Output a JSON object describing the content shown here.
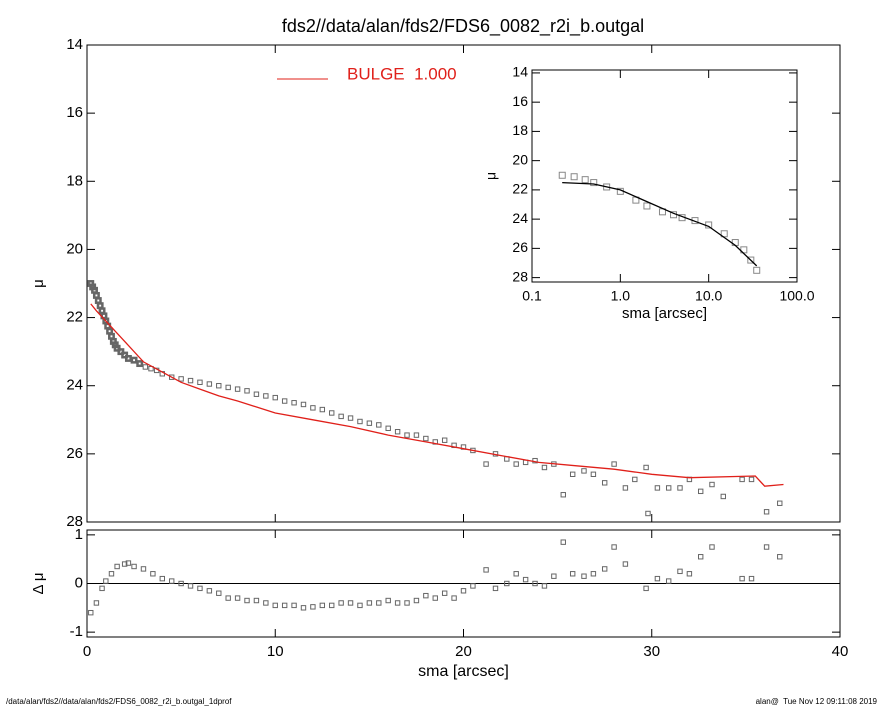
{
  "chart_data": [
    {
      "type": "scatter",
      "title": "fds2//data/alan/fds2/FDS6_0082_r2i_b.outgal",
      "ylabel": "μ",
      "xlim": [
        0,
        40
      ],
      "xticks": [
        0,
        10,
        20,
        30,
        40
      ],
      "show_xtick_labels": false,
      "ylim": [
        28,
        14
      ],
      "yticks": [
        14,
        16,
        18,
        20,
        22,
        24,
        26,
        28
      ],
      "series": [
        {
          "style": "markers",
          "color": "#666666",
          "x": [
            0.2,
            0.3,
            0.4,
            0.5,
            0.6,
            0.7,
            0.8,
            0.9,
            1.0,
            1.1,
            1.2,
            1.3,
            1.4,
            1.5,
            1.6,
            1.8,
            2.0,
            2.2,
            2.5,
            2.8,
            3.1,
            3.4,
            3.7,
            4.0,
            4.5,
            5.0,
            5.5,
            6.0,
            6.5,
            7.0,
            7.5,
            8.0,
            8.5,
            9.0,
            9.5,
            10.0,
            10.5,
            11.0,
            11.5,
            12.0,
            12.5,
            13.0,
            13.5,
            14.0,
            14.5,
            15.0,
            15.5,
            16.0,
            16.5,
            17.0,
            17.5,
            18.0,
            18.5,
            19.0,
            19.5,
            20.0,
            20.5,
            21.2,
            21.7,
            22.3,
            22.8,
            23.3,
            23.8,
            24.3,
            24.8,
            25.3,
            25.8,
            26.4,
            26.9,
            27.5,
            28.0,
            28.6,
            29.1,
            29.7,
            29.8,
            30.3,
            30.9,
            31.5,
            32.0,
            32.6,
            33.2,
            33.8,
            34.8,
            35.3,
            36.1,
            36.8
          ],
          "values": [
            21.0,
            21.1,
            21.2,
            21.35,
            21.5,
            21.65,
            21.8,
            21.95,
            22.1,
            22.25,
            22.4,
            22.55,
            22.7,
            22.8,
            22.9,
            23.0,
            23.1,
            23.2,
            23.25,
            23.35,
            23.45,
            23.5,
            23.55,
            23.65,
            23.75,
            23.8,
            23.85,
            23.9,
            23.95,
            24.0,
            24.05,
            24.1,
            24.15,
            24.25,
            24.3,
            24.35,
            24.45,
            24.5,
            24.55,
            24.65,
            24.7,
            24.8,
            24.9,
            24.95,
            25.05,
            25.1,
            25.15,
            25.25,
            25.35,
            25.45,
            25.45,
            25.55,
            25.65,
            25.6,
            25.75,
            25.8,
            25.9,
            26.3,
            26.0,
            26.15,
            26.3,
            26.25,
            26.2,
            26.4,
            26.3,
            27.2,
            26.6,
            26.5,
            26.6,
            26.85,
            26.3,
            27.0,
            26.75,
            26.4,
            27.75,
            27.0,
            27.0,
            27.0,
            26.75,
            27.1,
            26.9,
            27.25,
            26.75,
            26.75,
            27.7,
            27.45
          ]
        },
        {
          "style": "line",
          "name": "BULGE  1.000",
          "color": "#e0201a",
          "x": [
            0.2,
            0.5,
            1,
            1.5,
            2,
            3,
            4,
            5,
            6,
            7,
            8,
            10,
            12,
            14,
            16,
            18,
            20,
            22,
            24,
            26,
            28,
            30,
            32,
            35.5,
            36,
            37
          ],
          "values": [
            21.6,
            21.8,
            22.1,
            22.4,
            22.7,
            23.3,
            23.6,
            23.9,
            24.1,
            24.3,
            24.45,
            24.8,
            25.0,
            25.2,
            25.45,
            25.65,
            25.85,
            26.05,
            26.25,
            26.35,
            26.45,
            26.6,
            26.7,
            26.65,
            26.95,
            26.9
          ]
        }
      ]
    },
    {
      "type": "scatter",
      "ylabel": "Δ μ",
      "xlabel": "sma [arcsec]",
      "zero_line": true,
      "xlim": [
        0,
        40
      ],
      "xticks": [
        0,
        10,
        20,
        30,
        40
      ],
      "show_xtick_labels": true,
      "ylim": [
        -1.1,
        1.1
      ],
      "yticks": [
        -1,
        0,
        1
      ],
      "series": [
        {
          "style": "markers",
          "color": "#666666",
          "x": [
            0.2,
            0.5,
            0.8,
            1.0,
            1.3,
            1.6,
            2.0,
            2.2,
            2.5,
            3.0,
            3.5,
            4.0,
            4.5,
            5.0,
            5.5,
            6.0,
            6.5,
            7.0,
            7.5,
            8.0,
            8.5,
            9.0,
            9.5,
            10.0,
            10.5,
            11.0,
            11.5,
            12.0,
            12.5,
            13.0,
            13.5,
            14.0,
            14.5,
            15.0,
            15.5,
            16.0,
            16.5,
            17.0,
            17.5,
            18.0,
            18.5,
            19.0,
            19.5,
            20.0,
            20.5,
            21.2,
            21.7,
            22.3,
            22.8,
            23.3,
            23.8,
            24.3,
            24.8,
            25.3,
            25.8,
            26.4,
            26.9,
            27.5,
            28.0,
            28.6,
            29.7,
            30.3,
            30.9,
            31.5,
            32.0,
            32.6,
            33.2,
            34.8,
            35.3,
            36.1,
            36.8
          ],
          "values": [
            -0.6,
            -0.4,
            -0.1,
            0.05,
            0.2,
            0.35,
            0.4,
            0.42,
            0.35,
            0.3,
            0.2,
            0.1,
            0.05,
            0.0,
            -0.05,
            -0.1,
            -0.15,
            -0.2,
            -0.3,
            -0.3,
            -0.35,
            -0.35,
            -0.4,
            -0.45,
            -0.45,
            -0.45,
            -0.5,
            -0.48,
            -0.45,
            -0.45,
            -0.4,
            -0.4,
            -0.45,
            -0.4,
            -0.4,
            -0.35,
            -0.4,
            -0.4,
            -0.35,
            -0.25,
            -0.3,
            -0.2,
            -0.3,
            -0.15,
            -0.05,
            0.28,
            -0.1,
            0.0,
            0.2,
            0.08,
            0.0,
            -0.05,
            0.15,
            0.85,
            0.2,
            0.15,
            0.2,
            0.3,
            0.75,
            0.4,
            -0.1,
            0.1,
            0.05,
            0.25,
            0.2,
            0.55,
            0.75,
            0.1,
            0.1,
            0.75,
            0.55
          ]
        }
      ]
    },
    {
      "type": "scatter",
      "ylabel": "μ",
      "xlabel": "sma [arcsec]",
      "xscale": "log",
      "xlim": [
        0.1,
        100
      ],
      "xticks": [
        0.1,
        {
          "value": 1,
          "label": "1.0"
        },
        {
          "value": 10,
          "label": "10.0"
        },
        {
          "value": 100,
          "label": "100.0"
        }
      ],
      "show_xtick_labels": true,
      "ylim": [
        28.3,
        13.8
      ],
      "yticks": [
        14,
        16,
        18,
        20,
        22,
        24,
        26,
        28
      ],
      "series": [
        {
          "style": "markers",
          "color": "#888888",
          "x": [
            0.22,
            0.3,
            0.4,
            0.5,
            0.7,
            1,
            1.5,
            2,
            3,
            4,
            5,
            7,
            10,
            15,
            20,
            25,
            30,
            35
          ],
          "values": [
            21.0,
            21.1,
            21.3,
            21.5,
            21.8,
            22.1,
            22.7,
            23.1,
            23.5,
            23.7,
            23.9,
            24.1,
            24.4,
            25.0,
            25.6,
            26.1,
            26.8,
            27.5
          ]
        },
        {
          "style": "line",
          "color": "#000000",
          "x": [
            0.22,
            0.5,
            1,
            2,
            4,
            10,
            20,
            35
          ],
          "values": [
            21.5,
            21.6,
            22.0,
            22.8,
            23.6,
            24.5,
            25.8,
            27.2
          ]
        }
      ]
    }
  ],
  "footer": {
    "left": "/data/alan/fds2//data/alan/fds2/FDS6_0082_r2i_b.outgal_1dprof",
    "right": "alan@  Tue Nov 12 09:11:08 2019"
  }
}
